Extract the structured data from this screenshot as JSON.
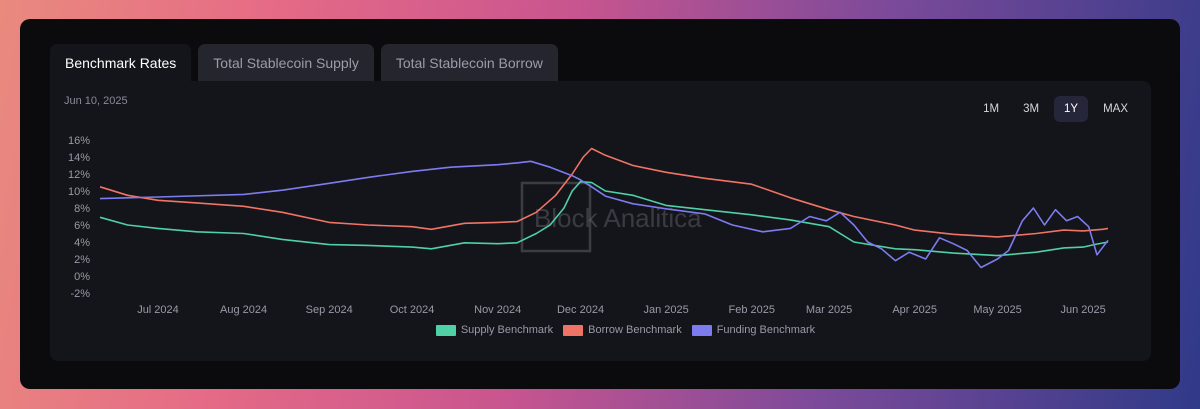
{
  "tabs": [
    {
      "label": "Benchmark Rates",
      "active": true
    },
    {
      "label": "Total Stablecoin Supply",
      "active": false
    },
    {
      "label": "Total Stablecoin Borrow",
      "active": false
    }
  ],
  "header": {
    "date": "Jun 10, 2025"
  },
  "ranges": [
    {
      "label": "1M",
      "active": false
    },
    {
      "label": "3M",
      "active": false
    },
    {
      "label": "1Y",
      "active": true
    },
    {
      "label": "MAX",
      "active": false
    }
  ],
  "watermark": "Block Analitica",
  "chart_data": {
    "type": "line",
    "xlabel": "",
    "ylabel": "",
    "ylim": [
      -2,
      16
    ],
    "yticks": [
      "16%",
      "14%",
      "12%",
      "10%",
      "8%",
      "6%",
      "4%",
      "2%",
      "0%",
      "-2%"
    ],
    "xticks": [
      "Jul 2024",
      "Aug 2024",
      "Sep 2024",
      "Oct 2024",
      "Nov 2024",
      "Dec 2024",
      "Jan 2025",
      "Feb 2025",
      "Mar 2025",
      "Apr 2025",
      "May 2025",
      "Jun 2025"
    ],
    "xtick_dates": [
      "2024-07-01",
      "2024-08-01",
      "2024-09-01",
      "2024-10-01",
      "2024-11-01",
      "2024-12-01",
      "2025-01-01",
      "2025-02-01",
      "2025-03-01",
      "2025-04-01",
      "2025-05-01",
      "2025-06-01"
    ],
    "xrange": [
      "2024-06-10",
      "2025-06-10"
    ],
    "grid": false,
    "legend_position": "bottom",
    "series": [
      {
        "name": "Supply Benchmark",
        "color": "#4fd1a5",
        "points": [
          [
            "2024-06-10",
            6.9
          ],
          [
            "2024-06-20",
            6.0
          ],
          [
            "2024-07-01",
            5.6
          ],
          [
            "2024-07-15",
            5.2
          ],
          [
            "2024-08-01",
            5.0
          ],
          [
            "2024-08-15",
            4.3
          ],
          [
            "2024-09-01",
            3.7
          ],
          [
            "2024-09-15",
            3.6
          ],
          [
            "2024-10-01",
            3.4
          ],
          [
            "2024-10-08",
            3.2
          ],
          [
            "2024-10-20",
            3.9
          ],
          [
            "2024-11-01",
            3.8
          ],
          [
            "2024-11-08",
            3.9
          ],
          [
            "2024-11-15",
            5.0
          ],
          [
            "2024-11-20",
            6.0
          ],
          [
            "2024-11-25",
            8.0
          ],
          [
            "2024-11-28",
            10.0
          ],
          [
            "2024-12-01",
            11.1
          ],
          [
            "2024-12-05",
            11.0
          ],
          [
            "2024-12-10",
            10.0
          ],
          [
            "2024-12-20",
            9.5
          ],
          [
            "2025-01-01",
            8.3
          ],
          [
            "2025-01-15",
            7.8
          ],
          [
            "2025-02-01",
            7.2
          ],
          [
            "2025-02-15",
            6.6
          ],
          [
            "2025-03-01",
            5.8
          ],
          [
            "2025-03-10",
            4.0
          ],
          [
            "2025-03-25",
            3.2
          ],
          [
            "2025-04-01",
            3.1
          ],
          [
            "2025-04-15",
            2.7
          ],
          [
            "2025-05-01",
            2.4
          ],
          [
            "2025-05-15",
            2.8
          ],
          [
            "2025-05-25",
            3.3
          ],
          [
            "2025-06-01",
            3.4
          ],
          [
            "2025-06-05",
            3.7
          ],
          [
            "2025-06-10",
            4.0
          ]
        ]
      },
      {
        "name": "Borrow Benchmark",
        "color": "#f07465",
        "points": [
          [
            "2024-06-10",
            10.5
          ],
          [
            "2024-06-20",
            9.5
          ],
          [
            "2024-07-01",
            8.9
          ],
          [
            "2024-07-15",
            8.6
          ],
          [
            "2024-08-01",
            8.2
          ],
          [
            "2024-08-15",
            7.5
          ],
          [
            "2024-09-01",
            6.3
          ],
          [
            "2024-09-15",
            6.0
          ],
          [
            "2024-10-01",
            5.8
          ],
          [
            "2024-10-08",
            5.5
          ],
          [
            "2024-10-20",
            6.2
          ],
          [
            "2024-11-01",
            6.3
          ],
          [
            "2024-11-08",
            6.4
          ],
          [
            "2024-11-15",
            7.5
          ],
          [
            "2024-11-22",
            9.5
          ],
          [
            "2024-11-28",
            12.0
          ],
          [
            "2024-12-02",
            14.0
          ],
          [
            "2024-12-05",
            15.0
          ],
          [
            "2024-12-10",
            14.2
          ],
          [
            "2024-12-20",
            13.0
          ],
          [
            "2025-01-01",
            12.2
          ],
          [
            "2025-01-15",
            11.5
          ],
          [
            "2025-02-01",
            10.8
          ],
          [
            "2025-02-15",
            9.2
          ],
          [
            "2025-03-01",
            7.8
          ],
          [
            "2025-03-10",
            7.0
          ],
          [
            "2025-03-25",
            6.0
          ],
          [
            "2025-04-01",
            5.4
          ],
          [
            "2025-04-15",
            4.9
          ],
          [
            "2025-05-01",
            4.6
          ],
          [
            "2025-05-15",
            5.0
          ],
          [
            "2025-05-25",
            5.4
          ],
          [
            "2025-06-01",
            5.3
          ],
          [
            "2025-06-08",
            5.5
          ],
          [
            "2025-06-10",
            5.6
          ]
        ]
      },
      {
        "name": "Funding Benchmark",
        "color": "#7c7cf0",
        "points": [
          [
            "2024-06-10",
            9.1
          ],
          [
            "2024-07-01",
            9.3
          ],
          [
            "2024-08-01",
            9.6
          ],
          [
            "2024-08-15",
            10.1
          ],
          [
            "2024-09-01",
            10.9
          ],
          [
            "2024-09-15",
            11.6
          ],
          [
            "2024-10-01",
            12.3
          ],
          [
            "2024-10-15",
            12.8
          ],
          [
            "2024-11-01",
            13.1
          ],
          [
            "2024-11-08",
            13.3
          ],
          [
            "2024-11-13",
            13.5
          ],
          [
            "2024-11-20",
            12.8
          ],
          [
            "2024-11-28",
            11.8
          ],
          [
            "2024-12-01",
            11.3
          ],
          [
            "2024-12-05",
            10.5
          ],
          [
            "2024-12-10",
            9.4
          ],
          [
            "2024-12-20",
            8.5
          ],
          [
            "2025-01-01",
            7.9
          ],
          [
            "2025-01-15",
            7.3
          ],
          [
            "2025-01-25",
            6.0
          ],
          [
            "2025-02-05",
            5.2
          ],
          [
            "2025-02-15",
            5.6
          ],
          [
            "2025-02-22",
            7.0
          ],
          [
            "2025-02-28",
            6.5
          ],
          [
            "2025-03-05",
            7.5
          ],
          [
            "2025-03-10",
            6.0
          ],
          [
            "2025-03-15",
            4.0
          ],
          [
            "2025-03-20",
            3.2
          ],
          [
            "2025-03-25",
            1.8
          ],
          [
            "2025-03-30",
            2.8
          ],
          [
            "2025-04-05",
            2.0
          ],
          [
            "2025-04-10",
            4.5
          ],
          [
            "2025-04-15",
            3.8
          ],
          [
            "2025-04-20",
            3.0
          ],
          [
            "2025-04-25",
            1.0
          ],
          [
            "2025-05-01",
            2.0
          ],
          [
            "2025-05-05",
            3.0
          ],
          [
            "2025-05-10",
            6.5
          ],
          [
            "2025-05-14",
            8.0
          ],
          [
            "2025-05-18",
            6.0
          ],
          [
            "2025-05-22",
            7.8
          ],
          [
            "2025-05-26",
            6.5
          ],
          [
            "2025-05-30",
            7.0
          ],
          [
            "2025-06-03",
            5.8
          ],
          [
            "2025-06-06",
            2.5
          ],
          [
            "2025-06-10",
            4.2
          ]
        ]
      }
    ]
  }
}
